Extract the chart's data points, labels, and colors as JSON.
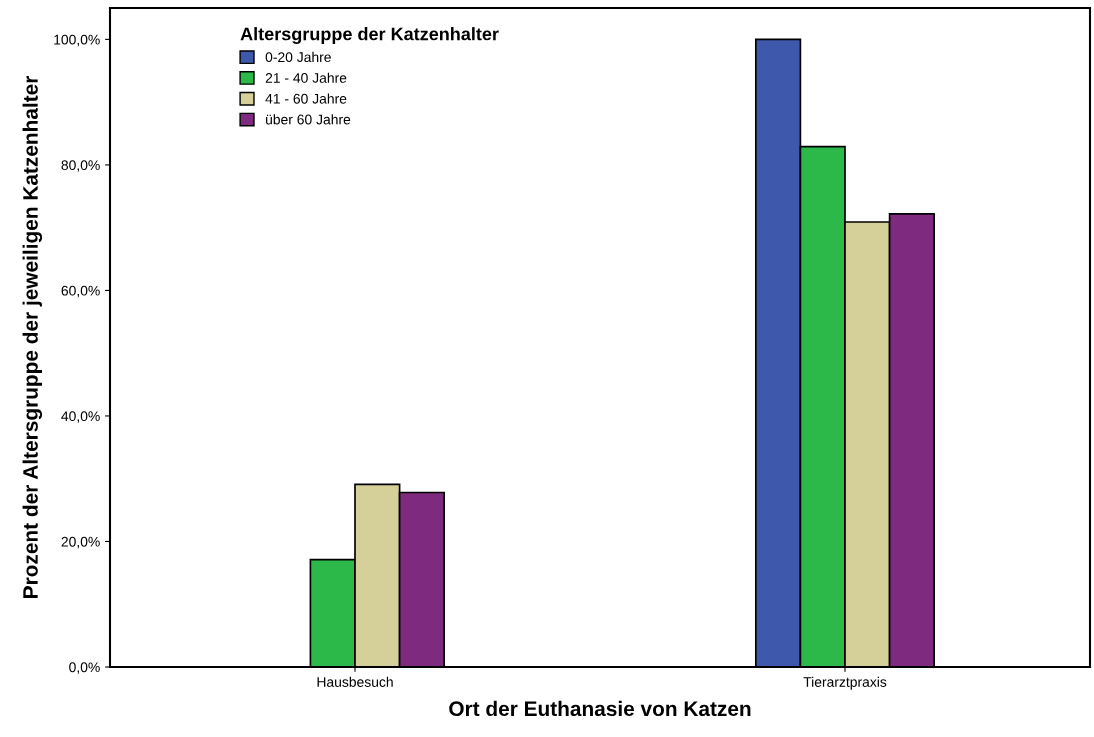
{
  "chart_data": {
    "type": "bar",
    "xlabel": "Ort der Euthanasie von Katzen",
    "ylabel": "Prozent der Altersgruppe der jeweiligen Katzenhalter",
    "legend_title": "Altersgruppe der Katzenhalter",
    "categories": [
      "Hausbesuch",
      "Tierarztpraxis"
    ],
    "series": [
      {
        "name": "0-20 Jahre",
        "color": "#3e59ab",
        "values": [
          null,
          100
        ]
      },
      {
        "name": "21 - 40 Jahre",
        "color": "#2db84a",
        "values": [
          17.1,
          82.9
        ]
      },
      {
        "name": "41 - 60 Jahre",
        "color": "#d5d09a",
        "values": [
          29.1,
          70.9
        ]
      },
      {
        "name": "über 60 Jahre",
        "color": "#7e2a7e",
        "values": [
          27.8,
          72.2
        ]
      }
    ],
    "ylim": [
      0,
      105
    ],
    "yticks": [
      {
        "value": 0,
        "label": "0,0%"
      },
      {
        "value": 20,
        "label": "20,0%"
      },
      {
        "value": 40,
        "label": "40,0%"
      },
      {
        "value": 60,
        "label": "60,0%"
      },
      {
        "value": 80,
        "label": "80,0%"
      },
      {
        "value": 100,
        "label": "100,0%"
      }
    ],
    "grid": false,
    "legend": "top left"
  }
}
